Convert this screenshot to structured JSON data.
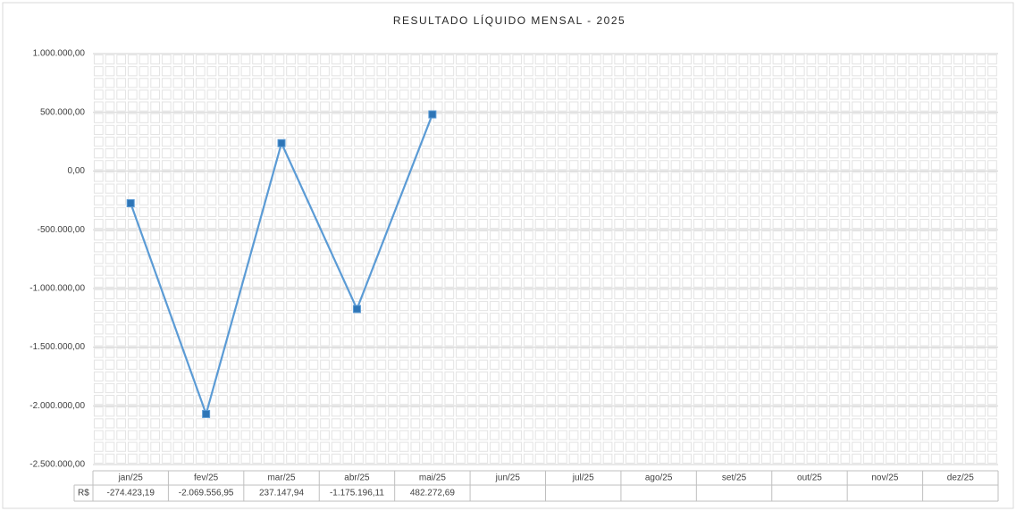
{
  "chart_data": {
    "type": "line",
    "title": "RESULTADO LÍQUIDO MENSAL - 2025",
    "categories": [
      "jan/25",
      "fev/25",
      "mar/25",
      "abr/25",
      "mai/25",
      "jun/25",
      "jul/25",
      "ago/25",
      "set/25",
      "out/25",
      "nov/25",
      "dez/25"
    ],
    "series": [
      {
        "name": "R$",
        "color": "#5b9bd5",
        "marker_color": "#2e75b6",
        "values": [
          -274423.19,
          -2069556.95,
          237147.94,
          -1175196.11,
          482272.69,
          null,
          null,
          null,
          null,
          null,
          null,
          null
        ],
        "value_labels": [
          "-274.423,19",
          "-2.069.556,95",
          "237.147,94",
          "-1.175.196,11",
          "482.272,69",
          null,
          null,
          null,
          null,
          null,
          null,
          null
        ]
      }
    ],
    "ylim": [
      -2500000,
      1000000
    ],
    "yticks": [
      {
        "value": -2500000,
        "label": "-2.500.000,00"
      },
      {
        "value": -2000000,
        "label": "-2.000.000,00"
      },
      {
        "value": -1500000,
        "label": "-1.500.000,00"
      },
      {
        "value": -1000000,
        "label": "-1.000.000,00"
      },
      {
        "value": -500000,
        "label": "-500.000,00"
      },
      {
        "value": 0,
        "label": "0,00"
      },
      {
        "value": 500000,
        "label": "500.000,00"
      },
      {
        "value": 1000000,
        "label": "1.000.000,00"
      }
    ],
    "grid": true
  }
}
